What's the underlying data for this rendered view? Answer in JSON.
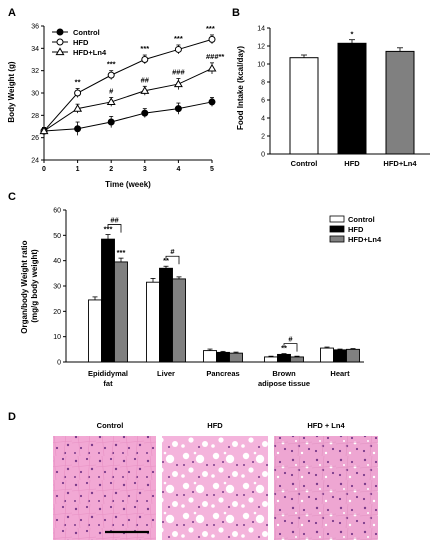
{
  "panels": {
    "a": "A",
    "b": "B",
    "c": "C",
    "d": "D"
  },
  "chart_data": [
    {
      "type": "line",
      "title": "",
      "xlabel": "Time (week)",
      "ylabel": "Body Weight (g)",
      "xlim": [
        0,
        5
      ],
      "ylim": [
        24,
        36
      ],
      "xticks": [
        "0",
        "1",
        "2",
        "3",
        "4",
        "5"
      ],
      "yticks": [
        "24",
        "26",
        "28",
        "30",
        "32",
        "34",
        "36"
      ],
      "x": [
        0,
        1,
        2,
        3,
        4,
        5
      ],
      "series": [
        {
          "name": "Control",
          "marker": "filled-circle",
          "values": [
            26.6,
            26.8,
            27.4,
            28.2,
            28.6,
            29.2
          ],
          "err": [
            0.3,
            0.6,
            0.5,
            0.4,
            0.5,
            0.4
          ]
        },
        {
          "name": "HFD",
          "marker": "open-circle",
          "values": [
            26.6,
            30.0,
            31.6,
            33.0,
            33.9,
            34.8
          ],
          "err": [
            0.3,
            0.4,
            0.4,
            0.4,
            0.4,
            0.4
          ]
        },
        {
          "name": "HFD+Ln4",
          "marker": "open-triangle",
          "values": [
            26.6,
            28.6,
            29.2,
            30.2,
            30.8,
            32.2
          ],
          "err": [
            0.3,
            0.4,
            0.4,
            0.4,
            0.5,
            0.5
          ]
        }
      ],
      "annotations": [
        {
          "x": 1,
          "label": "**",
          "series": "HFD"
        },
        {
          "x": 2,
          "label": "***",
          "series": "HFD"
        },
        {
          "x": 3,
          "label": "***",
          "series": "HFD"
        },
        {
          "x": 4,
          "label": "***",
          "series": "HFD"
        },
        {
          "x": 5,
          "label": "***",
          "series": "HFD"
        },
        {
          "x": 2,
          "label": "#",
          "series": "HFD+Ln4"
        },
        {
          "x": 3,
          "label": "##",
          "series": "HFD+Ln4"
        },
        {
          "x": 4,
          "label": "###",
          "series": "HFD+Ln4"
        },
        {
          "x": 5,
          "label": "###**",
          "series": "HFD+Ln4"
        }
      ],
      "legend": "top-left"
    },
    {
      "type": "bar",
      "title": "",
      "xlabel": "",
      "ylabel": "Food Intake (kcal/day)",
      "ylim": [
        0,
        14
      ],
      "yticks": [
        "0",
        "2",
        "4",
        "6",
        "8",
        "10",
        "12",
        "14"
      ],
      "categories": [
        "Control",
        "HFD",
        "HFD+Ln4"
      ],
      "values": [
        10.7,
        12.3,
        11.4
      ],
      "err": [
        0.3,
        0.4,
        0.4
      ],
      "colors": [
        "#ffffff",
        "#000000",
        "#808080"
      ],
      "annotations": [
        {
          "category": "HFD",
          "label": "*"
        }
      ]
    },
    {
      "type": "bar",
      "title": "",
      "xlabel": "",
      "ylabel": "Organ/body Weight ratio\n(mg/g body weight)",
      "ylim": [
        0,
        60
      ],
      "yticks": [
        "0",
        "10",
        "20",
        "30",
        "40",
        "50",
        "60"
      ],
      "categories": [
        "Epididymal\nfat",
        "Liver",
        "Pancreas",
        "Brown\nadipose tissue",
        "Heart"
      ],
      "series": [
        {
          "name": "Control",
          "color": "#ffffff",
          "values": [
            24.5,
            31.5,
            4.5,
            2.0,
            5.5
          ],
          "err": [
            1.2,
            1.5,
            0.6,
            0.3,
            0.4
          ]
        },
        {
          "name": "HFD",
          "color": "#000000",
          "values": [
            48.5,
            37.0,
            3.8,
            3.0,
            4.8
          ],
          "err": [
            1.8,
            0.8,
            0.4,
            0.3,
            0.3
          ]
        },
        {
          "name": "HFD+Ln4",
          "color": "#808080",
          "values": [
            39.5,
            32.8,
            3.5,
            2.0,
            5.0
          ],
          "err": [
            1.5,
            0.8,
            0.4,
            0.3,
            0.3
          ]
        }
      ],
      "annotations": [
        {
          "category": "Epididymal\nfat",
          "series": "HFD",
          "label": "***"
        },
        {
          "category": "Epididymal\nfat",
          "series": "HFD+Ln4",
          "label": "***"
        },
        {
          "category": "Epididymal\nfat",
          "bracket": "HFD-HFD+Ln4",
          "label": "##"
        },
        {
          "category": "Liver",
          "series": "HFD",
          "label": "**"
        },
        {
          "category": "Liver",
          "bracket": "HFD-HFD+Ln4",
          "label": "#"
        },
        {
          "category": "Brown\nadipose tissue",
          "series": "HFD",
          "label": "**"
        },
        {
          "category": "Brown\nadipose tissue",
          "bracket": "HFD-HFD+Ln4",
          "label": "#"
        }
      ],
      "legend": "top-right"
    }
  ],
  "micrographs": {
    "titles": [
      "Control",
      "HFD",
      "HFD + Ln4"
    ],
    "colors": {
      "stain": "#f2a8d4",
      "nuclei": "#7a3a8a",
      "vacuole": "#ffffff",
      "scale_bar": "#000000"
    }
  }
}
